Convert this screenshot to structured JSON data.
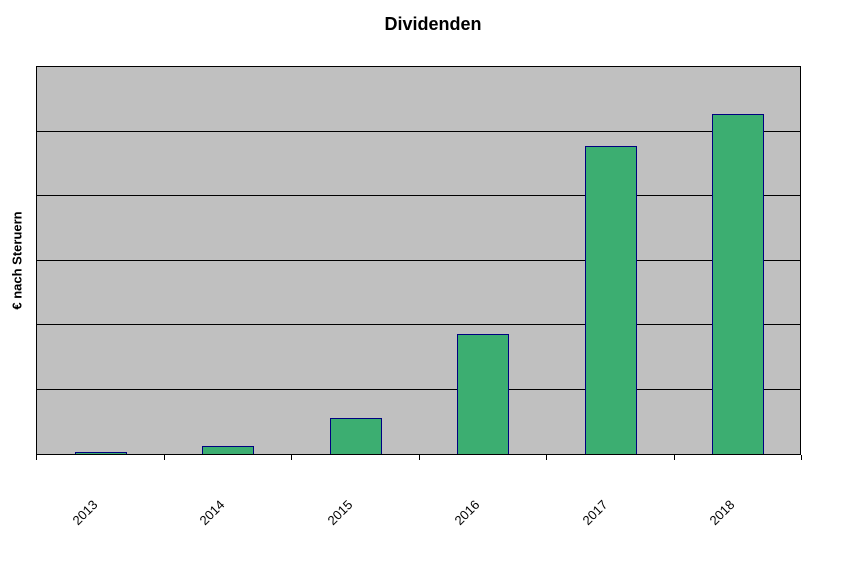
{
  "chart_data": {
    "type": "bar",
    "title": "Dividenden",
    "xlabel": "",
    "ylabel": "€ nach Steruern",
    "categories": [
      "2013",
      "2014",
      "2015",
      "2016",
      "2017",
      "2018"
    ],
    "values": [
      0.03,
      0.13,
      0.55,
      1.85,
      4.75,
      5.25
    ],
    "ylim": [
      0,
      6
    ],
    "gridline_count": 6,
    "grid": true,
    "legend_position": "none",
    "colors": {
      "bar_fill": "#3cae71",
      "bar_border": "#000080",
      "plot_background": "#c0c0c0",
      "gridline": "#000000",
      "text": "#000000",
      "page_background": "#ffffff"
    }
  }
}
